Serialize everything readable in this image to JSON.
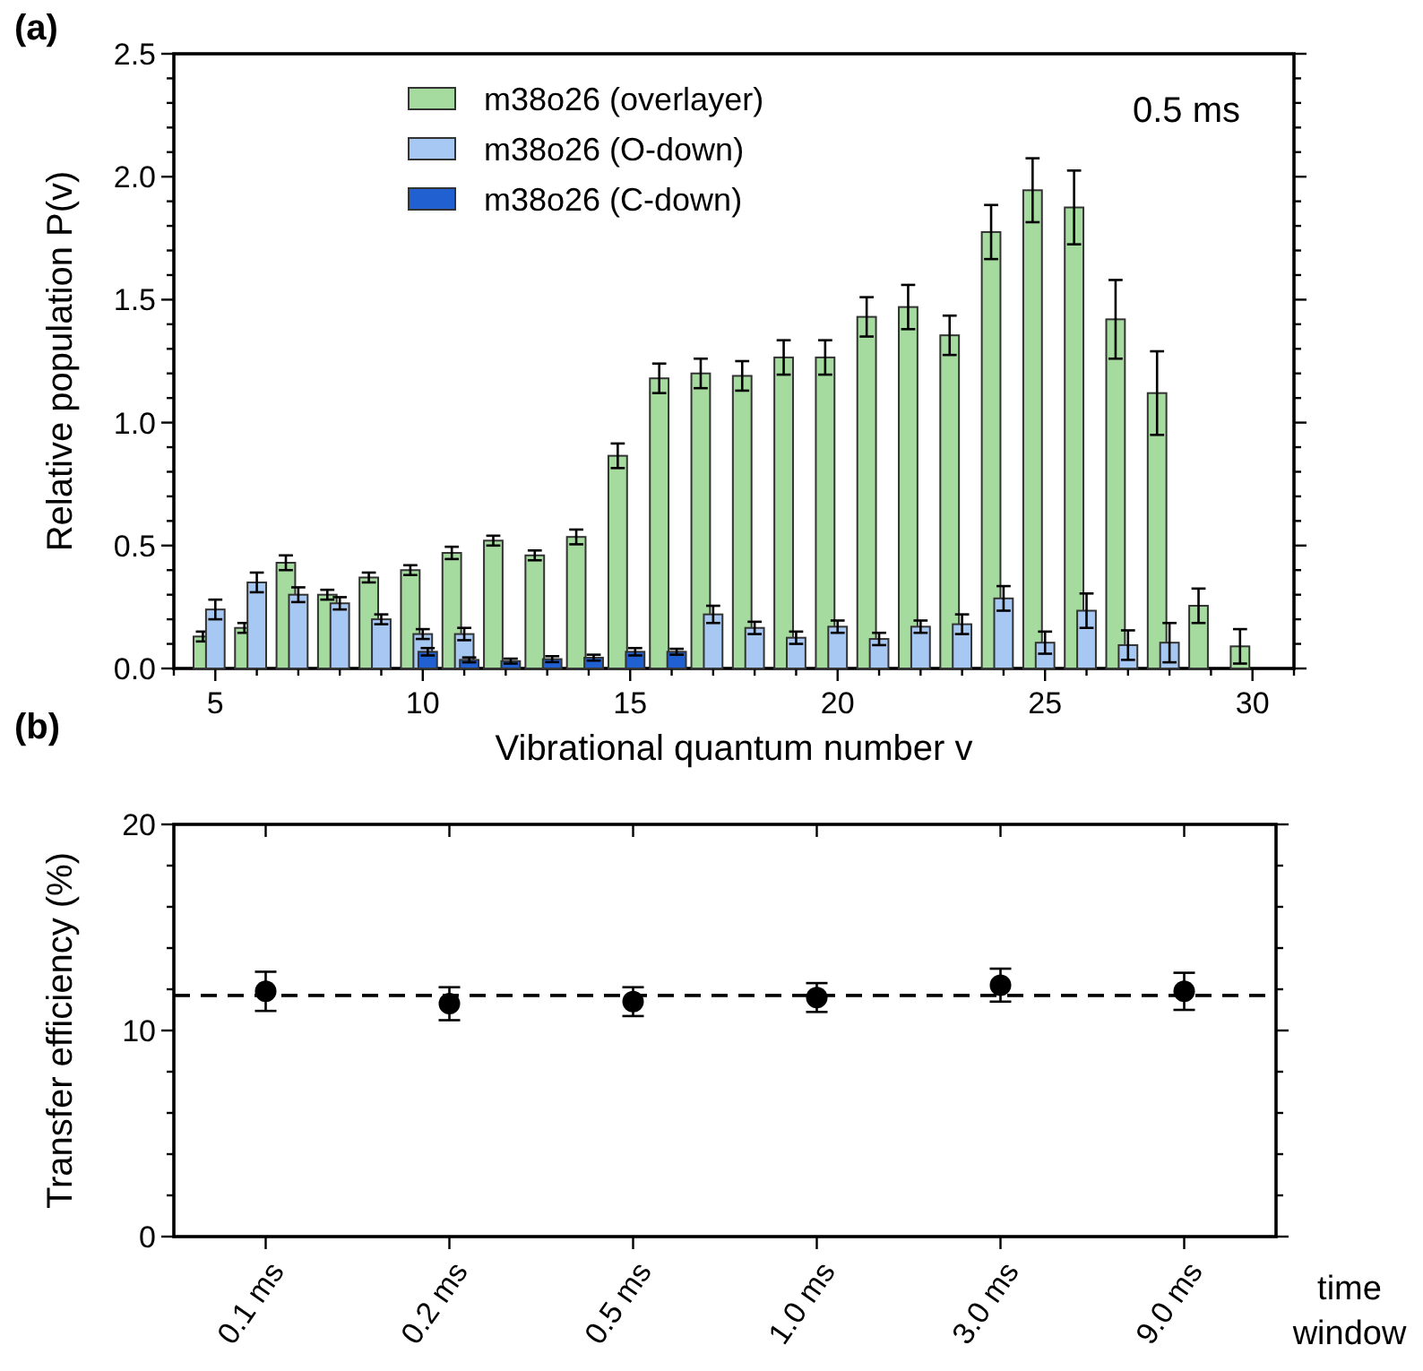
{
  "chart_data": [
    {
      "type": "bar",
      "xlabel": "Vibrational quantum number v",
      "ylabel": "Relative population P(v)",
      "annotations": [
        "(a)",
        "0.5 ms"
      ],
      "x": [
        5,
        6,
        7,
        8,
        9,
        10,
        11,
        12,
        13,
        14,
        15,
        16,
        17,
        18,
        19,
        20,
        21,
        22,
        23,
        24,
        25,
        26,
        27,
        28,
        29,
        30
      ],
      "series": [
        {
          "name": "m38o26 (overlayer)",
          "color": "#a6dba0",
          "values": [
            0.13,
            0.165,
            0.43,
            0.3,
            0.37,
            0.4,
            0.47,
            0.52,
            0.46,
            0.535,
            0.865,
            1.18,
            1.2,
            1.19,
            1.265,
            1.265,
            1.43,
            1.47,
            1.355,
            1.775,
            1.945,
            1.875,
            1.42,
            1.12,
            0.255,
            0.09
          ],
          "errors": [
            0.02,
            0.02,
            0.03,
            0.02,
            0.02,
            0.02,
            0.025,
            0.02,
            0.02,
            0.03,
            0.05,
            0.06,
            0.06,
            0.06,
            0.07,
            0.07,
            0.08,
            0.09,
            0.08,
            0.11,
            0.13,
            0.15,
            0.16,
            0.17,
            0.07,
            0.07
          ]
        },
        {
          "name": "m38o26 (O-down)",
          "color": "#a8c8f4",
          "values": [
            0.24,
            0.35,
            0.3,
            0.265,
            0.2,
            0.14,
            0.14,
            null,
            null,
            null,
            null,
            null,
            0.22,
            0.165,
            0.125,
            0.17,
            0.12,
            0.17,
            0.18,
            0.285,
            0.105,
            0.235,
            0.095,
            0.105,
            null,
            null
          ],
          "errors": [
            0.04,
            0.04,
            0.03,
            0.025,
            0.02,
            0.02,
            0.025,
            null,
            null,
            null,
            null,
            null,
            0.035,
            0.025,
            0.025,
            0.025,
            0.025,
            0.025,
            0.04,
            0.05,
            0.045,
            0.07,
            0.06,
            0.08,
            null,
            null
          ]
        },
        {
          "name": "m38o26 (C-down)",
          "color": "#2060d0",
          "values": [
            null,
            null,
            null,
            null,
            null,
            0.068,
            0.035,
            0.03,
            0.038,
            0.044,
            0.068,
            0.068,
            null,
            null,
            null,
            null,
            null,
            null,
            null,
            null,
            null,
            null,
            null,
            null,
            null,
            null
          ],
          "errors": [
            null,
            null,
            null,
            null,
            null,
            0.015,
            0.01,
            0.01,
            0.012,
            0.012,
            0.015,
            0.012,
            null,
            null,
            null,
            null,
            null,
            null,
            null,
            null,
            null,
            null,
            null,
            null,
            null,
            null
          ]
        }
      ],
      "xlim": [
        4,
        31
      ],
      "xticks": [
        {
          "value": 4,
          "label": null
        },
        5,
        {
          "value": 6,
          "label": null
        },
        {
          "value": 7,
          "label": null
        },
        {
          "value": 8,
          "label": null
        },
        {
          "value": 9,
          "label": null
        },
        10,
        {
          "value": 11,
          "label": null
        },
        {
          "value": 12,
          "label": null
        },
        {
          "value": 13,
          "label": null
        },
        {
          "value": 14,
          "label": null
        },
        15,
        {
          "value": 16,
          "label": null
        },
        {
          "value": 17,
          "label": null
        },
        {
          "value": 18,
          "label": null
        },
        {
          "value": 19,
          "label": null
        },
        20,
        {
          "value": 21,
          "label": null
        },
        {
          "value": 22,
          "label": null
        },
        {
          "value": 23,
          "label": null
        },
        {
          "value": 24,
          "label": null
        },
        25,
        {
          "value": 26,
          "label": null
        },
        {
          "value": 27,
          "label": null
        },
        {
          "value": 28,
          "label": null
        },
        {
          "value": 29,
          "label": null
        },
        30,
        {
          "value": 31,
          "label": null
        }
      ],
      "ylim": [
        0,
        2.5
      ],
      "yticks": [
        {
          "value": 0,
          "label": "0.0"
        },
        {
          "value": 0.1,
          "label": null
        },
        {
          "value": 0.2,
          "label": null
        },
        {
          "value": 0.3,
          "label": null
        },
        {
          "value": 0.4,
          "label": null
        },
        {
          "value": 0.5,
          "label": "0.5"
        },
        {
          "value": 0.6,
          "label": null
        },
        {
          "value": 0.7,
          "label": null
        },
        {
          "value": 0.8,
          "label": null
        },
        {
          "value": 0.9,
          "label": null
        },
        {
          "value": 1,
          "label": "1.0"
        },
        {
          "value": 1.1,
          "label": null
        },
        {
          "value": 1.2,
          "label": null
        },
        {
          "value": 1.3,
          "label": null
        },
        {
          "value": 1.4,
          "label": null
        },
        {
          "value": 1.5,
          "label": "1.5"
        },
        {
          "value": 1.6,
          "label": null
        },
        {
          "value": 1.7,
          "label": null
        },
        {
          "value": 1.8,
          "label": null
        },
        {
          "value": 1.9,
          "label": null
        },
        {
          "value": 2,
          "label": "2.0"
        },
        {
          "value": 2.1,
          "label": null
        },
        {
          "value": 2.2,
          "label": null
        },
        {
          "value": 2.3,
          "label": null
        },
        {
          "value": 2.4,
          "label": null
        },
        {
          "value": 2.5,
          "label": "2.5"
        }
      ],
      "legend": "top",
      "grid": false
    },
    {
      "type": "scatter",
      "xlabel": "time window",
      "ylabel": "Transfer efficiency (%)",
      "annotations": [
        "(b)"
      ],
      "categories": [
        "0.1 ms",
        "0.2 ms",
        "0.5 ms",
        "1.0 ms",
        "3.0 ms",
        "9.0 ms"
      ],
      "series": [
        {
          "color": "#000000",
          "values": [
            11.9,
            11.3,
            11.4,
            11.6,
            12.2,
            11.9
          ],
          "errors": [
            0.95,
            0.8,
            0.7,
            0.7,
            0.8,
            0.9
          ]
        }
      ],
      "ylim": [
        0,
        20
      ],
      "yticks": [
        0,
        {
          "value": 2,
          "label": null
        },
        {
          "value": 4,
          "label": null
        },
        {
          "value": 6,
          "label": null
        },
        {
          "value": 8,
          "label": null
        },
        10,
        {
          "value": 12,
          "label": null
        },
        {
          "value": 14,
          "label": null
        },
        {
          "value": 16,
          "label": null
        },
        {
          "value": 18,
          "label": null
        },
        20
      ],
      "ref_lines": [
        {
          "axis": "y",
          "value": 11.7,
          "color": "#000000",
          "line_style": "dashed"
        }
      ],
      "marker": "circle",
      "grid": false
    }
  ]
}
